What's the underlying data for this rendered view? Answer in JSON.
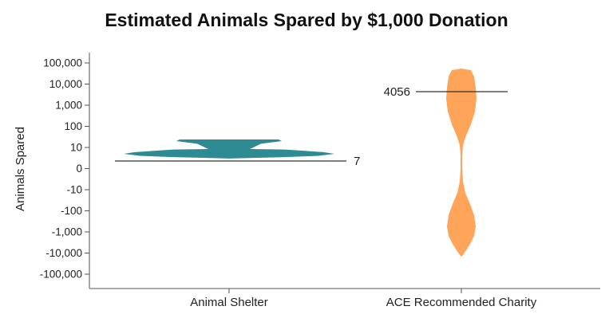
{
  "chart_data": {
    "type": "violin",
    "title": "Estimated Animals Spared by $1,000 Donation",
    "ylabel": "Animals Spared",
    "xlabel": "",
    "y_scale": "symmetric-log",
    "y_ticks": [
      "100,000",
      "10,000",
      "1,000",
      "100",
      "10",
      "0",
      "-10",
      "-100",
      "-1,000",
      "-10,000",
      "-100,000"
    ],
    "categories": [
      "Animal Shelter",
      "ACE Recommended Charity"
    ],
    "series": [
      {
        "category": "Animal Shelter",
        "color": "#2e8a93",
        "annotation": "7",
        "reference_value": 7,
        "distribution_y_range": [
          4,
          40
        ]
      },
      {
        "category": "ACE Recommended Charity",
        "color": "#ffa55a",
        "annotation": "4056",
        "reference_value": 4056,
        "distribution_y_range": [
          -15000,
          60000
        ]
      }
    ],
    "grid": false,
    "legend": "none"
  }
}
